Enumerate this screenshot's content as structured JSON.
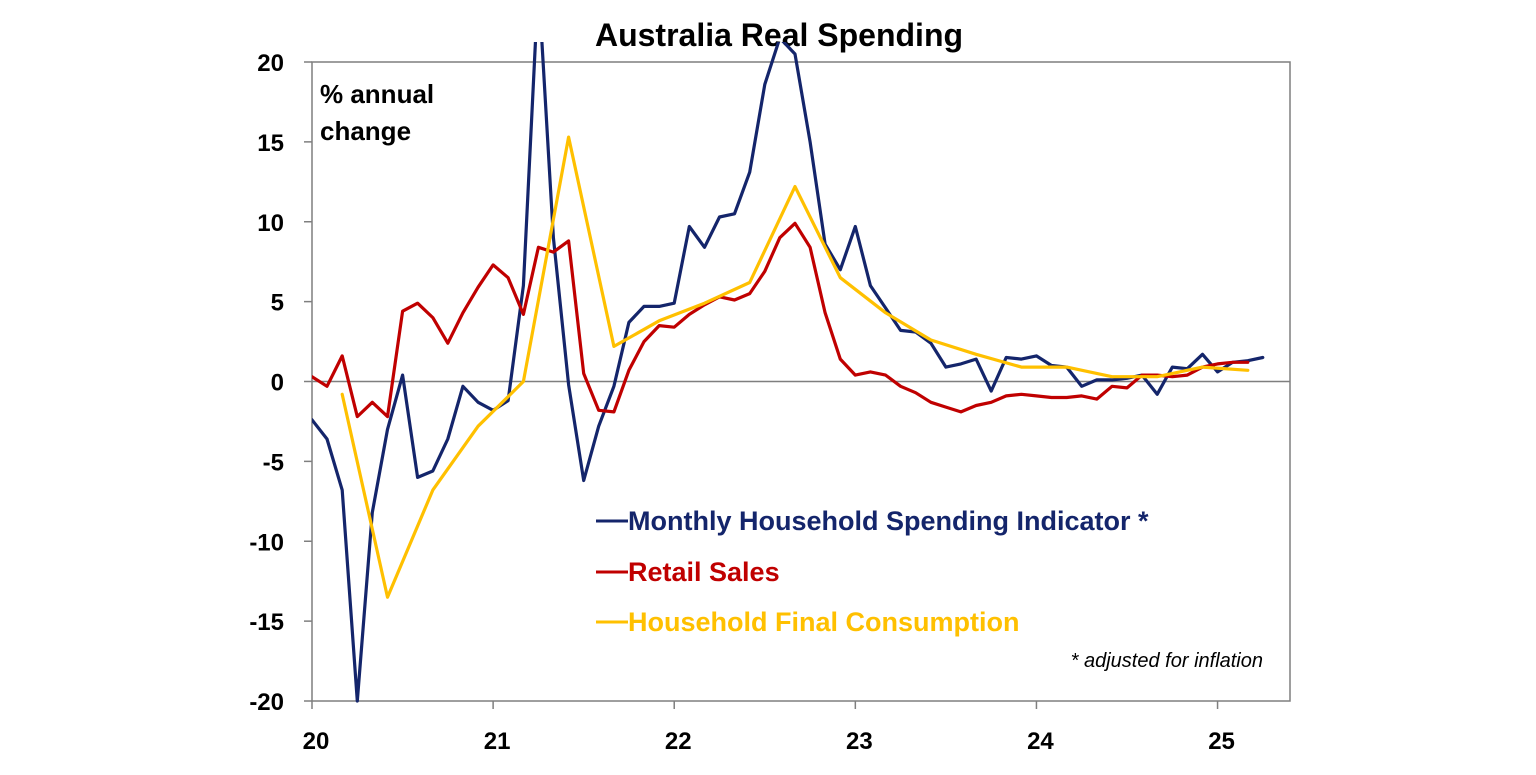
{
  "chart_data": {
    "type": "line",
    "title": "Australia Real Spending",
    "unit_label": [
      "% annual",
      "change"
    ],
    "footnote": "* adjusted for inflation",
    "ylim": [
      -20,
      20
    ],
    "xlim": [
      2020,
      2025.4
    ],
    "yticks": [
      20,
      15,
      10,
      5,
      0,
      -5,
      -10,
      -15,
      -20
    ],
    "yticklabels": [
      "20",
      "15",
      "10",
      "5",
      "0",
      "-5",
      "-10",
      "-15",
      "-20"
    ],
    "xticks": [
      2020,
      2021,
      2022,
      2023,
      2024,
      2025
    ],
    "xticklabels": [
      "20",
      "21",
      "22",
      "23",
      "24",
      "25"
    ],
    "grid": false,
    "legend_position": "bottom-right",
    "series": [
      {
        "name": "Monthly Household Spending Indicator *",
        "color": "#14256b",
        "x": [
          2020.0,
          2020.083,
          2020.167,
          2020.25,
          2020.333,
          2020.417,
          2020.5,
          2020.583,
          2020.667,
          2020.75,
          2020.833,
          2020.917,
          2021.0,
          2021.083,
          2021.167,
          2021.25,
          2021.333,
          2021.417,
          2021.5,
          2021.583,
          2021.667,
          2021.75,
          2021.833,
          2021.917,
          2022.0,
          2022.083,
          2022.167,
          2022.25,
          2022.333,
          2022.417,
          2022.5,
          2022.583,
          2022.667,
          2022.75,
          2022.833,
          2022.917,
          2023.0,
          2023.083,
          2023.167,
          2023.25,
          2023.333,
          2023.417,
          2023.5,
          2023.583,
          2023.667,
          2023.75,
          2023.833,
          2023.917,
          2024.0,
          2024.083,
          2024.167,
          2024.25,
          2024.333,
          2024.417,
          2024.5,
          2024.583,
          2024.667,
          2024.75,
          2024.833,
          2024.917,
          2025.0,
          2025.083,
          2025.167,
          2025.25
        ],
        "values": [
          -2.4,
          -3.6,
          -6.8,
          -20.0,
          -8.2,
          -3.0,
          0.4,
          -6.0,
          -5.6,
          -3.6,
          -0.3,
          -1.3,
          -1.8,
          -1.2,
          6.0,
          25.0,
          9.0,
          -0.2,
          -6.2,
          -2.8,
          -0.3,
          3.7,
          4.7,
          4.7,
          4.9,
          9.7,
          8.4,
          10.3,
          10.5,
          13.1,
          18.6,
          21.5,
          20.5,
          15.0,
          8.6,
          7.0,
          9.7,
          6.0,
          4.6,
          3.2,
          3.1,
          2.4,
          0.9,
          1.1,
          1.4,
          -0.6,
          1.5,
          1.4,
          1.6,
          1.0,
          0.9,
          -0.3,
          0.1,
          0.1,
          0.2,
          0.4,
          -0.8,
          0.9,
          0.8,
          1.7,
          0.6,
          1.2,
          1.3,
          1.5
        ]
      },
      {
        "name": "Retail Sales",
        "color": "#c00000",
        "x": [
          2020.0,
          2020.083,
          2020.167,
          2020.25,
          2020.333,
          2020.417,
          2020.5,
          2020.583,
          2020.667,
          2020.75,
          2020.833,
          2020.917,
          2021.0,
          2021.083,
          2021.167,
          2021.25,
          2021.333,
          2021.417,
          2021.5,
          2021.583,
          2021.667,
          2021.75,
          2021.833,
          2021.917,
          2022.0,
          2022.083,
          2022.167,
          2022.25,
          2022.333,
          2022.417,
          2022.5,
          2022.583,
          2022.667,
          2022.75,
          2022.833,
          2022.917,
          2023.0,
          2023.083,
          2023.167,
          2023.25,
          2023.333,
          2023.417,
          2023.5,
          2023.583,
          2023.667,
          2023.75,
          2023.833,
          2023.917,
          2024.0,
          2024.083,
          2024.167,
          2024.25,
          2024.333,
          2024.417,
          2024.5,
          2024.583,
          2024.667,
          2024.75,
          2024.833,
          2024.917,
          2025.0,
          2025.083,
          2025.167
        ],
        "values": [
          0.3,
          -0.3,
          1.6,
          -2.2,
          -1.3,
          -2.2,
          4.4,
          4.9,
          4.0,
          2.4,
          4.3,
          5.9,
          7.3,
          6.5,
          4.2,
          8.4,
          8.1,
          8.8,
          0.5,
          -1.8,
          -1.9,
          0.7,
          2.5,
          3.5,
          3.4,
          4.2,
          4.8,
          5.3,
          5.1,
          5.5,
          6.9,
          9.0,
          9.9,
          8.4,
          4.3,
          1.4,
          0.4,
          0.6,
          0.4,
          -0.3,
          -0.7,
          -1.3,
          -1.6,
          -1.9,
          -1.5,
          -1.3,
          -0.9,
          -0.8,
          -0.9,
          -1.0,
          -1.0,
          -0.9,
          -1.1,
          -0.3,
          -0.4,
          0.4,
          0.4,
          0.3,
          0.4,
          0.9,
          1.1,
          1.2,
          1.2
        ]
      },
      {
        "name": "Household Final Consumption",
        "color": "#ffc000",
        "x": [
          2020.167,
          2020.417,
          2020.667,
          2020.917,
          2021.167,
          2021.417,
          2021.667,
          2021.917,
          2022.167,
          2022.417,
          2022.667,
          2022.917,
          2023.167,
          2023.417,
          2023.667,
          2023.917,
          2024.167,
          2024.417,
          2024.667,
          2024.917,
          2025.167
        ],
        "values": [
          -0.8,
          -13.5,
          -6.8,
          -2.8,
          0.0,
          15.3,
          2.2,
          3.8,
          4.9,
          6.2,
          12.2,
          6.5,
          4.3,
          2.6,
          1.7,
          0.9,
          0.9,
          0.3,
          0.3,
          0.9,
          0.7
        ]
      }
    ]
  }
}
